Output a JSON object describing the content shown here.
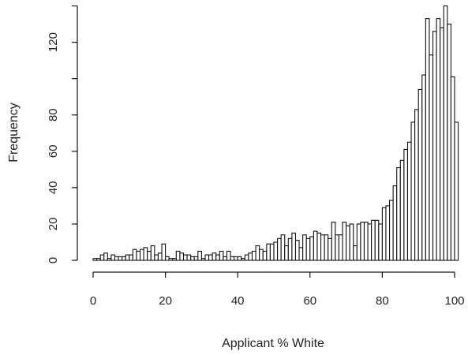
{
  "chart_data": {
    "type": "bar",
    "title": "",
    "xlabel": "Applicant % White",
    "ylabel": "Frequency",
    "xlim": [
      0,
      100
    ],
    "ylim": [
      0,
      140
    ],
    "x_ticks": [
      0,
      20,
      40,
      60,
      80,
      100
    ],
    "y_ticks": [
      0,
      20,
      40,
      60,
      80,
      120
    ],
    "bin_width": 1,
    "bin_start": 0,
    "values": [
      1,
      1,
      3,
      4,
      1,
      3,
      2,
      2,
      2,
      3,
      3,
      6,
      5,
      6,
      7,
      5,
      8,
      3,
      4,
      9,
      2,
      1,
      1,
      5,
      4,
      3,
      3,
      2,
      2,
      5,
      1,
      3,
      3,
      4,
      3,
      5,
      2,
      5,
      2,
      2,
      2,
      1,
      3,
      4,
      5,
      8,
      6,
      5,
      9,
      9,
      10,
      12,
      14,
      8,
      12,
      15,
      11,
      7,
      14,
      12,
      13,
      16,
      15,
      14,
      14,
      12,
      21,
      14,
      14,
      21,
      19,
      20,
      8,
      20,
      21,
      21,
      20,
      22,
      22,
      20,
      29,
      30,
      33,
      41,
      51,
      55,
      61,
      65,
      76,
      83,
      94,
      102,
      133,
      113,
      126,
      133,
      128,
      140,
      130,
      101,
      76
    ]
  }
}
